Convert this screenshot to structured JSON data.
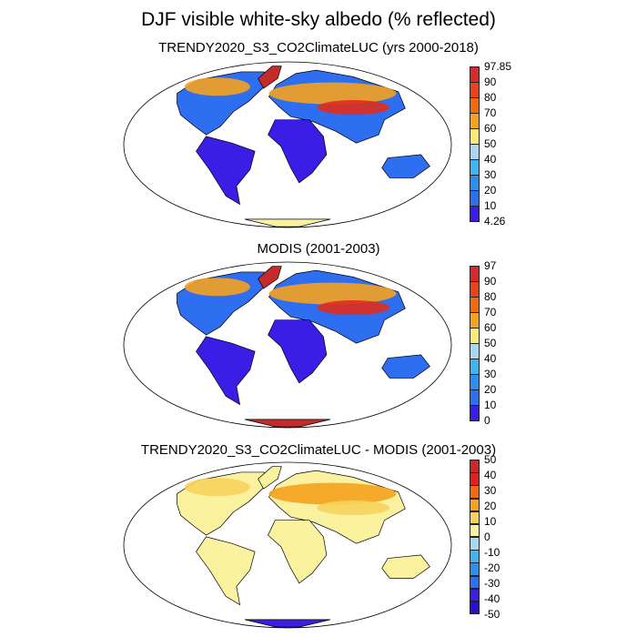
{
  "title": "DJF visible white-sky albedo (% reflected)",
  "colors": {
    "outline": "#000000",
    "coast": "#000000",
    "low_blue": "#3a1ee6",
    "mid_blue": "#2e6ef0",
    "light_blue": "#3fb4f0",
    "pale_yellow": "#fbf2a0",
    "yellow": "#f7d35c",
    "orange": "#f5a21e",
    "dark_orange": "#f26a0e",
    "red": "#e02c1c",
    "dark_red": "#c62b2b"
  },
  "panels": [
    {
      "id": "trendy",
      "title": "TRENDY2020_S3_CO2ClimateLUC (yrs 2000-2018)",
      "colorbar": {
        "labels": [
          "97.85",
          "90",
          "80",
          "70",
          "60",
          "50",
          "40",
          "30",
          "20",
          "10",
          "4.26"
        ],
        "colors": [
          "#d72b2b",
          "#e8431a",
          "#f26a0e",
          "#f5a21e",
          "#fbe97a",
          "#a8d8f0",
          "#3fb4f0",
          "#2e8ef0",
          "#2e6ef0",
          "#3a1ee6"
        ]
      }
    },
    {
      "id": "modis",
      "title": "MODIS (2001-2003)",
      "colorbar": {
        "labels": [
          "97",
          "90",
          "80",
          "70",
          "60",
          "50",
          "40",
          "30",
          "20",
          "10",
          "0"
        ],
        "colors": [
          "#d72b2b",
          "#e8431a",
          "#f26a0e",
          "#f5a21e",
          "#fbe97a",
          "#a8d8f0",
          "#3fb4f0",
          "#2e8ef0",
          "#2e6ef0",
          "#3a1ee6"
        ]
      }
    },
    {
      "id": "diff",
      "title": "TRENDY2020_S3_CO2ClimateLUC - MODIS (2001-2003)",
      "colorbar": {
        "labels": [
          "50",
          "40",
          "30",
          "20",
          "10",
          "0",
          "-10",
          "-20",
          "-30",
          "-40",
          "-50"
        ],
        "colors": [
          "#c62b2b",
          "#e0201c",
          "#f26a0e",
          "#f5a21e",
          "#f7d35c",
          "#fbf2a0",
          "#a8d8f0",
          "#3fb4f0",
          "#2e8ef0",
          "#2e6ef0",
          "#3a1ee6",
          "#2a10d0"
        ]
      }
    }
  ]
}
